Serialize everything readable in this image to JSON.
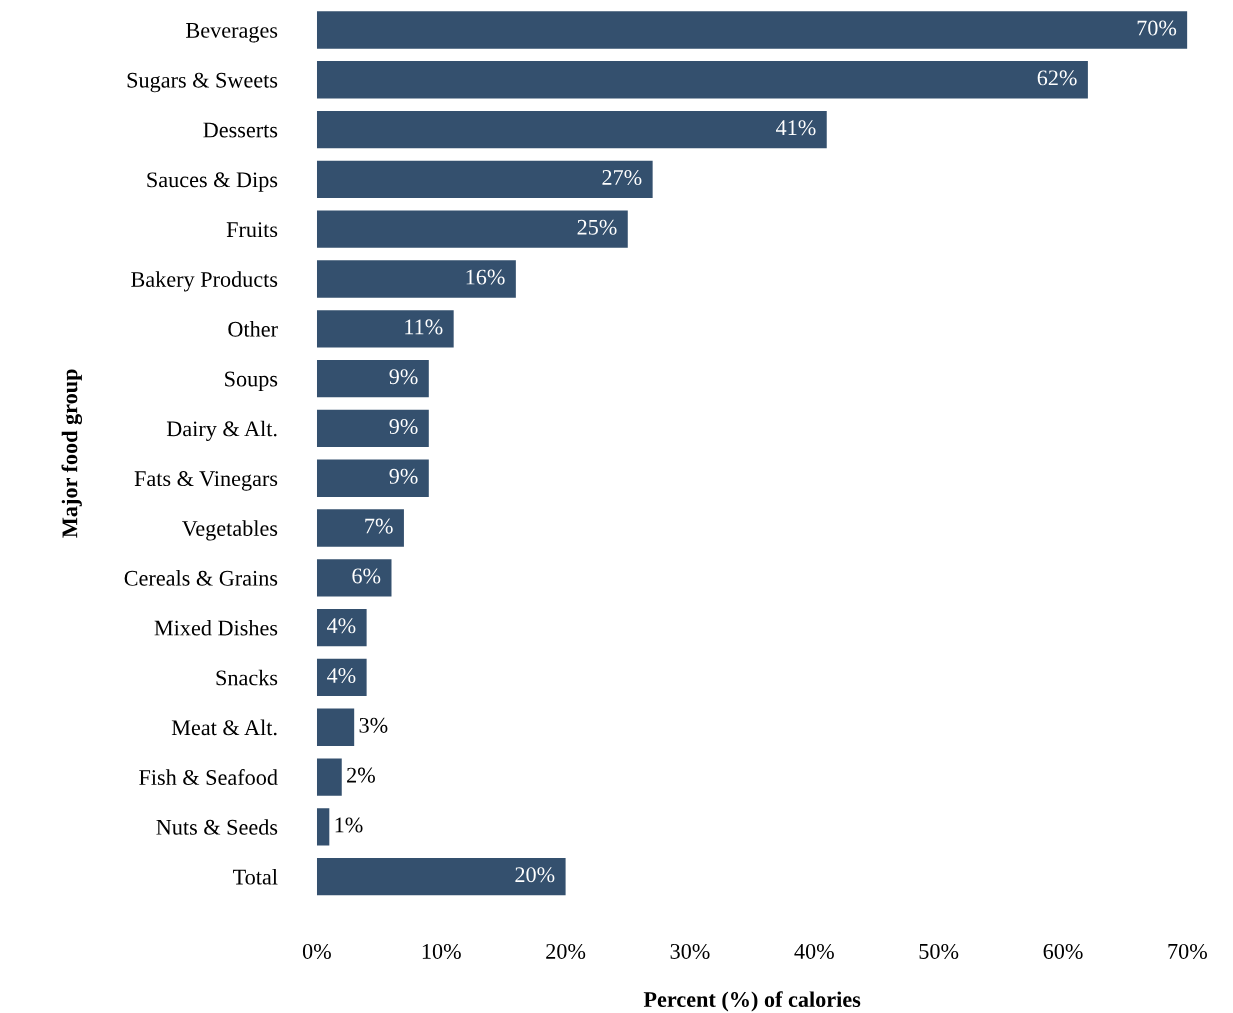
{
  "chart_data": {
    "type": "bar",
    "orientation": "horizontal",
    "xlabel": "Percent (%) of calories",
    "ylabel": "Major food group",
    "categories": [
      "Beverages",
      "Sugars & Sweets",
      "Desserts",
      "Sauces & Dips",
      "Fruits",
      "Bakery Products",
      "Other",
      "Soups",
      "Dairy & Alt.",
      "Fats & Vinegars",
      "Vegetables",
      "Cereals & Grains",
      "Mixed Dishes",
      "Snacks",
      "Meat & Alt.",
      "Fish & Seafood",
      "Nuts & Seeds",
      "Total"
    ],
    "values": [
      70,
      62,
      41,
      27,
      25,
      16,
      11,
      9,
      9,
      9,
      7,
      6,
      4,
      4,
      3,
      2,
      1,
      20
    ],
    "value_labels": [
      "70%",
      "62%",
      "41%",
      "27%",
      "25%",
      "16%",
      "11%",
      "9%",
      "9%",
      "9%",
      "7%",
      "6%",
      "4%",
      "4%",
      "3%",
      "2%",
      "1%",
      "20%"
    ],
    "color": "#34506e",
    "xlim": [
      0,
      70
    ],
    "xticks": [
      {
        "value": 0,
        "label": "0%"
      },
      {
        "value": 10,
        "label": "10%"
      },
      {
        "value": 20,
        "label": "20%"
      },
      {
        "value": 30,
        "label": "30%"
      },
      {
        "value": 40,
        "label": "40%"
      },
      {
        "value": 50,
        "label": "50%"
      },
      {
        "value": 60,
        "label": "60%"
      },
      {
        "value": 70,
        "label": "70%"
      }
    ],
    "grid": false,
    "legend": false
  }
}
